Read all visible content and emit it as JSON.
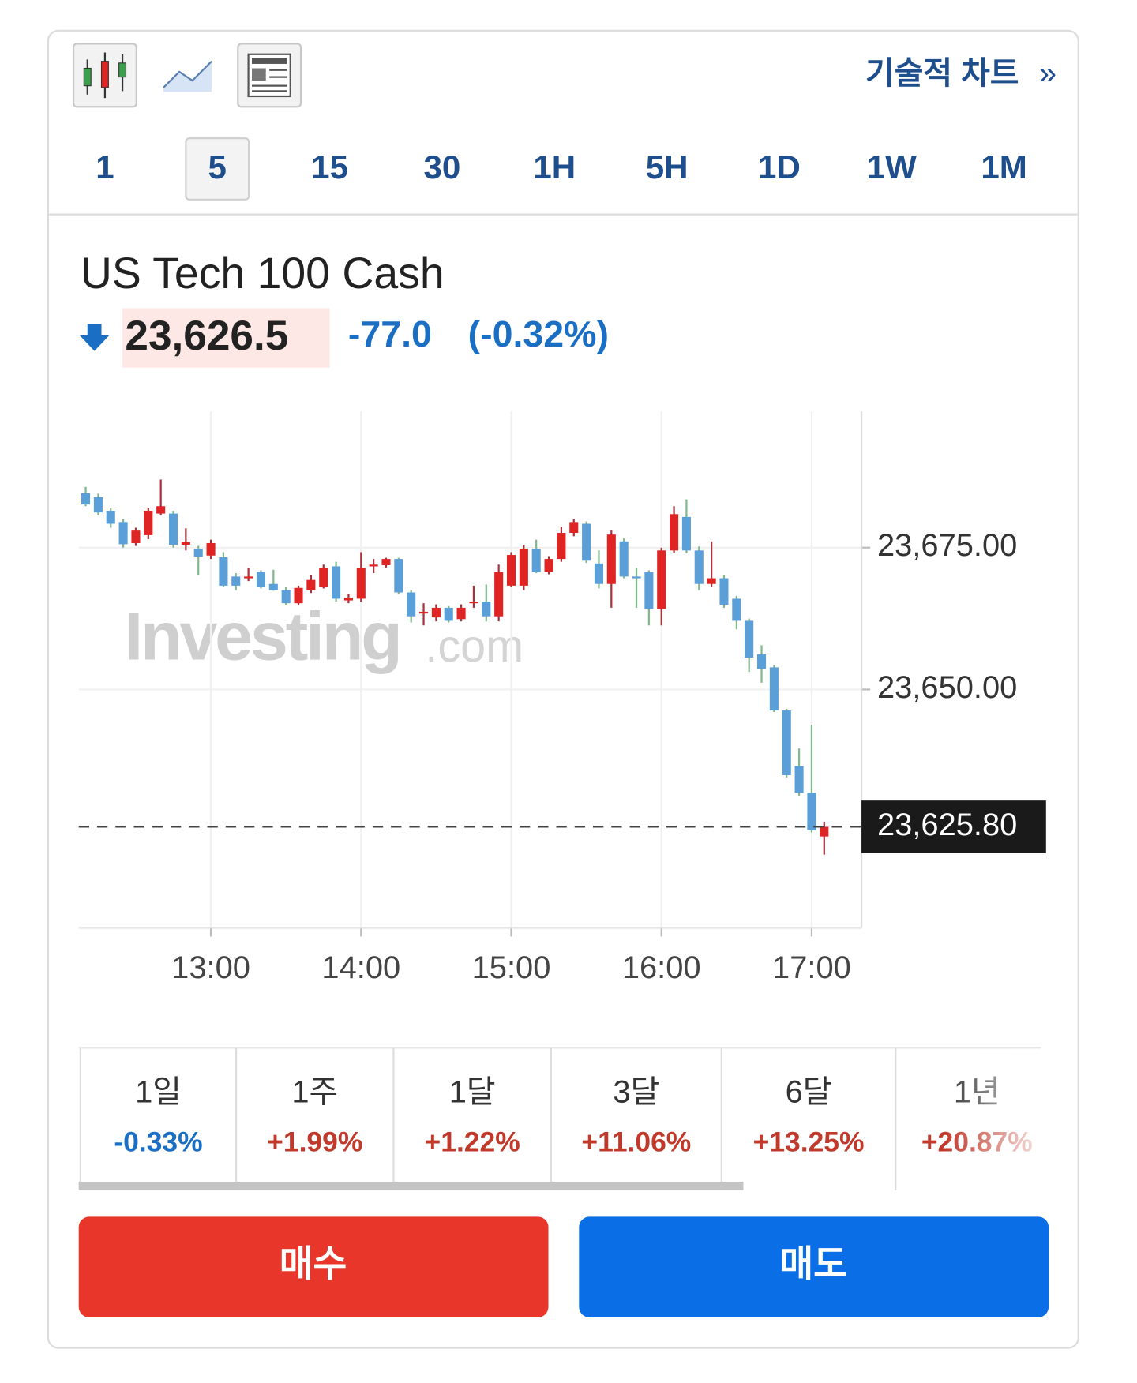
{
  "toolbar": {
    "technical_chart": "기술적 차트",
    "chevron": "»"
  },
  "timeframes": [
    "1",
    "5",
    "15",
    "30",
    "1H",
    "5H",
    "1D",
    "1W",
    "1M"
  ],
  "selected_timeframe": "5",
  "instrument": {
    "name": "US Tech 100 Cash",
    "price": "23,626.5",
    "change": "-77.0",
    "change_pct": "(-0.32%)"
  },
  "chart_data": {
    "type": "candlestick",
    "watermark": [
      "Investing",
      ".com"
    ],
    "categories": [
      null,
      null,
      null,
      null,
      null,
      null,
      null,
      null,
      null,
      null,
      "13:00",
      null,
      null,
      null,
      null,
      null,
      null,
      null,
      null,
      null,
      null,
      null,
      "14:00",
      null,
      null,
      null,
      null,
      null,
      null,
      null,
      null,
      null,
      null,
      null,
      "15:00",
      null,
      null,
      null,
      null,
      null,
      null,
      null,
      null,
      null,
      null,
      null,
      "16:00",
      null,
      null,
      null,
      null,
      null,
      null,
      null,
      null,
      null,
      null,
      null,
      "17:00",
      null
    ],
    "open": [
      23684.6,
      23683.9,
      23681.5,
      23679.5,
      23675.8,
      23677.2,
      23681.0,
      23681.0,
      23675.5,
      23674.8,
      23673.6,
      23673.3,
      23669.9,
      23669.8,
      23670.7,
      23668.6,
      23667.5,
      23665.2,
      23667.5,
      23668.0,
      23671.7,
      23665.7,
      23666.0,
      23671.8,
      23671.9,
      23673.0,
      23667.1,
      23663.4,
      23662.7,
      23664.4,
      23662.4,
      23665.3,
      23665.5,
      23662.9,
      23668.3,
      23668.3,
      23674.8,
      23670.7,
      23673.0,
      23677.6,
      23679.2,
      23672.2,
      23668.6,
      23676.1,
      23669.9,
      23670.7,
      23664.2,
      23674.5,
      23680.4,
      23674.5,
      23668.6,
      23669.6,
      23666.0,
      23662.1,
      23656.2,
      23653.9,
      23646.3,
      23636.5,
      23631.8,
      23624.1
    ],
    "high": [
      23685.7,
      23684.5,
      23682.0,
      23680.0,
      23678.5,
      23682.0,
      23687.0,
      23681.5,
      23678.4,
      23675.3,
      23676.4,
      23674.2,
      23670.5,
      23671.4,
      23671.0,
      23671.1,
      23668.0,
      23668.3,
      23670.2,
      23672.0,
      23672.5,
      23666.8,
      23674.2,
      23673.0,
      23673.2,
      23673.2,
      23667.5,
      23665.2,
      23665.0,
      23664.7,
      23665.0,
      23668.3,
      23668.5,
      23672.0,
      23674.2,
      23675.5,
      23676.4,
      23673.5,
      23678.7,
      23680.0,
      23679.6,
      23674.5,
      23678.0,
      23676.6,
      23671.4,
      23671.0,
      23675.0,
      23682.3,
      23683.5,
      23675.2,
      23676.1,
      23670.2,
      23666.5,
      23662.5,
      23657.8,
      23654.3,
      23646.6,
      23639.6,
      23643.8,
      23626.7
    ],
    "low": [
      23682.3,
      23680.7,
      23678.5,
      23675.0,
      23675.3,
      23676.5,
      23680.7,
      23675.0,
      23674.5,
      23670.2,
      23673.0,
      23668.0,
      23667.5,
      23669.1,
      23667.8,
      23667.4,
      23664.9,
      23664.8,
      23667.0,
      23667.8,
      23665.5,
      23665.2,
      23665.5,
      23670.5,
      23671.5,
      23666.8,
      23661.8,
      23661.3,
      23662.0,
      23661.8,
      23662.0,
      23664.4,
      23662.0,
      23662.0,
      23668.0,
      23667.5,
      23670.5,
      23670.3,
      23672.5,
      23677.0,
      23672.3,
      23667.8,
      23664.4,
      23669.6,
      23664.4,
      23661.3,
      23661.3,
      23674.0,
      23674.0,
      23667.5,
      23668.0,
      23664.4,
      23660.6,
      23653.1,
      23651.2,
      23646.0,
      23634.5,
      23631.3,
      23624.8,
      23620.9
    ],
    "close": [
      23682.6,
      23681.2,
      23679.2,
      23675.6,
      23678.0,
      23681.5,
      23682.3,
      23675.5,
      23676.0,
      23673.4,
      23675.8,
      23668.3,
      23668.3,
      23669.9,
      23668.0,
      23667.5,
      23665.2,
      23667.9,
      23669.3,
      23671.4,
      23666.0,
      23666.2,
      23671.4,
      23672.0,
      23673.0,
      23667.1,
      23662.9,
      23663.7,
      23664.4,
      23662.1,
      23664.4,
      23665.5,
      23662.9,
      23670.7,
      23673.7,
      23674.8,
      23670.7,
      23673.0,
      23677.6,
      23679.5,
      23672.7,
      23668.6,
      23677.3,
      23669.9,
      23669.6,
      23664.2,
      23674.5,
      23680.9,
      23674.5,
      23668.6,
      23669.6,
      23664.9,
      23662.1,
      23655.6,
      23653.6,
      23646.3,
      23634.9,
      23631.8,
      23625.2,
      23625.8
    ],
    "up_color": "#e02424",
    "down_color": "#5a9fd8",
    "ylim": [
      23608,
      23699
    ],
    "yticks": [
      {
        "value": 23650,
        "label": "23,650.00"
      },
      {
        "value": 23675,
        "label": "23,675.00"
      }
    ],
    "last_price": {
      "value": 23625.8,
      "label": "23,625.80"
    },
    "grid": true
  },
  "periods": [
    {
      "label": "1일",
      "change": "-0.33%"
    },
    {
      "label": "1주",
      "change": "+1.99%"
    },
    {
      "label": "1달",
      "change": "+1.22%"
    },
    {
      "label": "3달",
      "change": "+11.06%"
    },
    {
      "label": "6달",
      "change": "+13.25%"
    },
    {
      "label": "1년",
      "change": "+20.87%"
    }
  ],
  "buttons": {
    "buy": "매수",
    "sell": "매도"
  }
}
